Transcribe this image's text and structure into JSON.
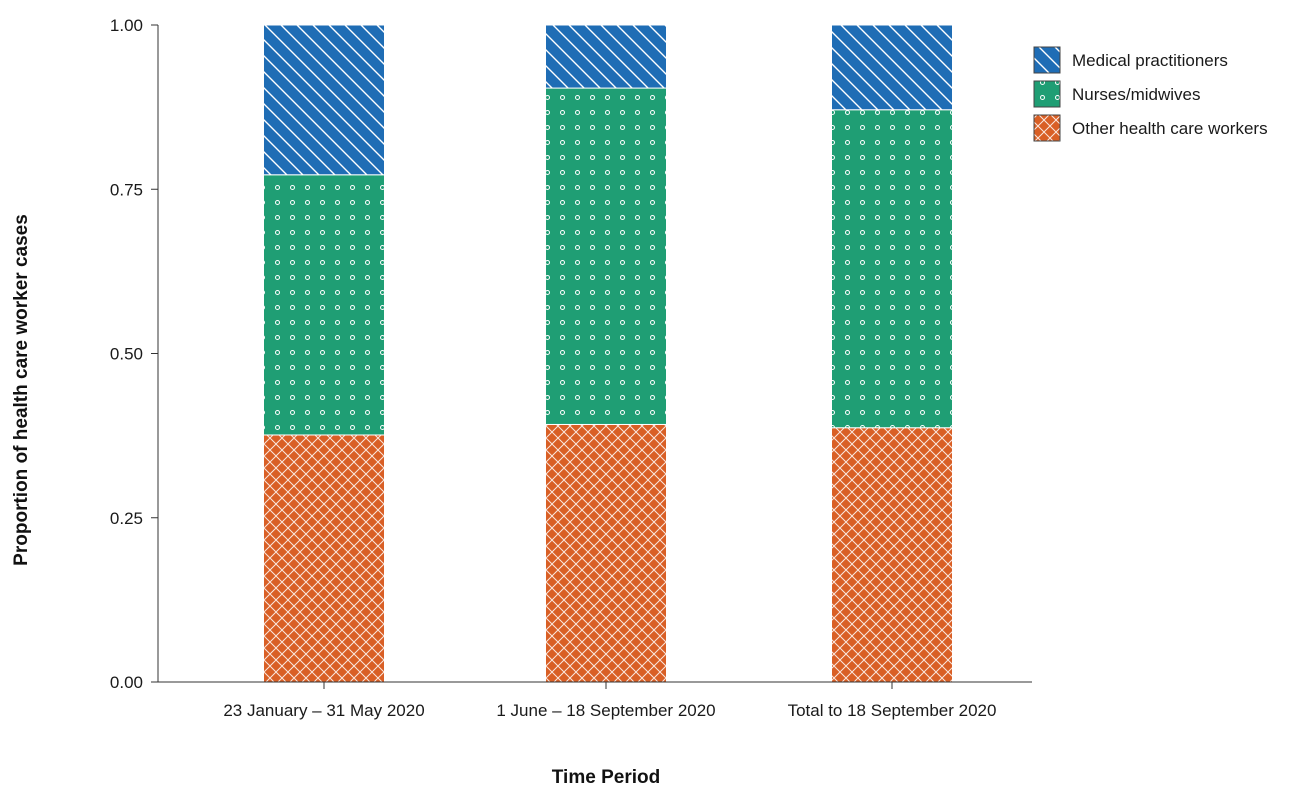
{
  "chart_data": {
    "type": "bar",
    "stacked": true,
    "title": "",
    "xlabel": "Time Period",
    "ylabel": "Proportion of health care worker cases",
    "categories": [
      "23 January – 31 May 2020",
      "1 June – 18 September 2020",
      "Total to 18 September 2020"
    ],
    "ylim": [
      0,
      1
    ],
    "yticks": [
      "0.00",
      "0.25",
      "0.50",
      "0.75",
      "1.00"
    ],
    "grid": false,
    "legend_position": "top-right",
    "series": [
      {
        "name": "Other health care workers",
        "values": [
          0.376,
          0.392,
          0.387
        ],
        "color": "#d95f25",
        "pattern": "crosshatch"
      },
      {
        "name": "Nurses/midwives",
        "values": [
          0.396,
          0.512,
          0.484
        ],
        "color": "#1f9e74",
        "pattern": "dots"
      },
      {
        "name": "Medical practitioners",
        "values": [
          0.228,
          0.096,
          0.129
        ],
        "color": "#1f6db5",
        "pattern": "diagonal"
      }
    ],
    "legend_order": [
      "Medical practitioners",
      "Nurses/midwives",
      "Other health care workers"
    ]
  }
}
